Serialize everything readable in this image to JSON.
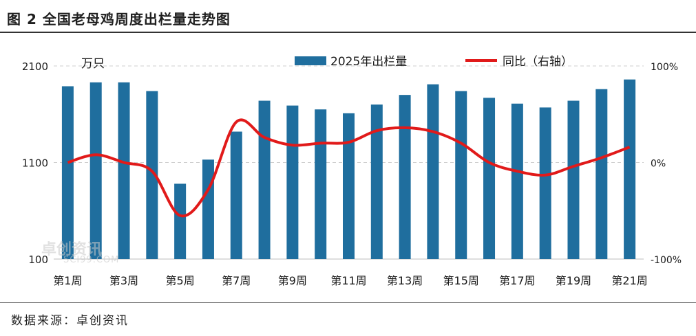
{
  "title": "图 2  全国老母鸡周度出栏量走势图",
  "source": "数据来源：卓创资讯",
  "watermark": "卓创资讯",
  "watermark_sub": "SCI99.COM",
  "colors": {
    "bar": "#1f6e9e",
    "line": "#e11a1a",
    "grid": "#cfcfcf",
    "text": "#1a1a1a"
  },
  "chart_data": {
    "type": "bar",
    "unit_label": "万只",
    "categories": [
      "第1周",
      "第2周",
      "第3周",
      "第4周",
      "第5周",
      "第6周",
      "第7周",
      "第8周",
      "第9周",
      "第10周",
      "第11周",
      "第12周",
      "第13周",
      "第14周",
      "第15周",
      "第16周",
      "第17周",
      "第18周",
      "第19周",
      "第20周",
      "第21周"
    ],
    "x_tick_labels": [
      "第1周",
      "",
      "第3周",
      "",
      "第5周",
      "",
      "第7周",
      "",
      "第9周",
      "",
      "第11周",
      "",
      "第13周",
      "",
      "第15周",
      "",
      "第17周",
      "",
      "第19周",
      "",
      "第21周"
    ],
    "series": [
      {
        "name": "2025年出栏量",
        "type": "bar",
        "axis": "left",
        "values": [
          1890,
          1930,
          1930,
          1840,
          880,
          1130,
          1420,
          1740,
          1690,
          1650,
          1610,
          1700,
          1800,
          1910,
          1840,
          1770,
          1710,
          1670,
          1740,
          1860,
          1960
        ]
      },
      {
        "name": "同比（右轴）",
        "type": "line",
        "axis": "right",
        "values": [
          0,
          8,
          0,
          -9,
          -55,
          -28,
          42,
          26,
          18,
          20,
          21,
          33,
          36,
          32,
          20,
          0,
          -9,
          -13,
          -4,
          5,
          16
        ]
      }
    ],
    "y_left": {
      "min": 100,
      "max": 2100,
      "ticks": [
        100,
        1100,
        2100
      ]
    },
    "y_right": {
      "min": -100,
      "max": 100,
      "ticks": [
        "-100%",
        "0%",
        "100%"
      ]
    },
    "legend_position": "top",
    "grid": "dashed horizontal"
  }
}
